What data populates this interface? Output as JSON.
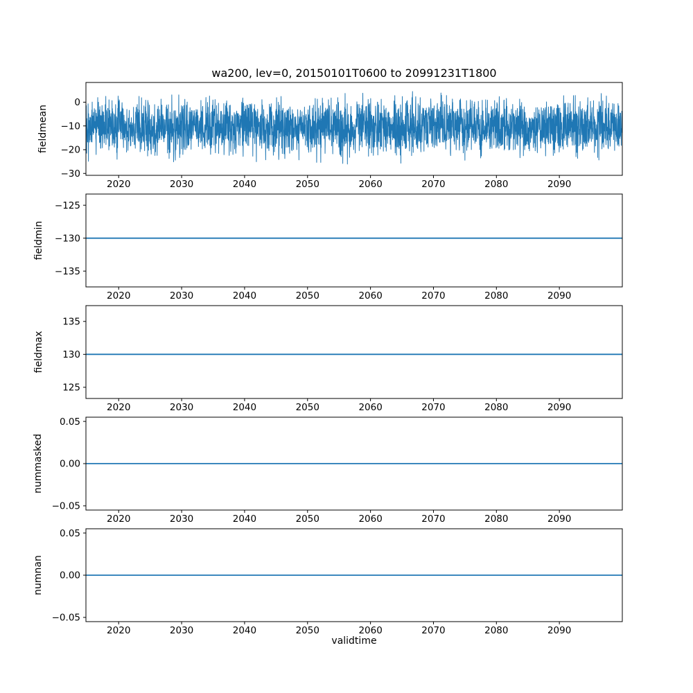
{
  "figure": {
    "title": "wa200, lev=0, 20150101T0600 to 20991231T1800",
    "xlabel": "validtime",
    "background": "#ffffff",
    "line_color": "#1f77b4",
    "axes_edge_color": "#000000",
    "xlim": [
      2014.8,
      2100.0
    ],
    "x_ticks": {
      "values": [
        2020,
        2030,
        2040,
        2050,
        2060,
        2070,
        2080,
        2090
      ],
      "labels": [
        "2020",
        "2030",
        "2040",
        "2050",
        "2060",
        "2070",
        "2080",
        "2090"
      ]
    }
  },
  "chart_data": [
    {
      "type": "line",
      "ylabel": "fieldmean",
      "ylim": [
        -30.8,
        8.3
      ],
      "yticks": {
        "values": [
          0,
          -10,
          -20,
          -30
        ],
        "labels": [
          "0",
          "−10",
          "−20",
          "−30"
        ]
      },
      "series": {
        "kind": "noisy-random",
        "mean": -10.5,
        "std": 5.5,
        "min": -29.5,
        "max": 6.5,
        "n_points": 3000,
        "seed": 20150101,
        "description": "dense 6-hourly noise from 2015 to 2100; values mostly between −25 and 0 with spikes down to ≈ −29 and up to ≈ +6"
      }
    },
    {
      "type": "line",
      "ylabel": "fieldmin",
      "ylim": [
        -137.4,
        -123.3
      ],
      "yticks": {
        "values": [
          -125,
          -130,
          -135
        ],
        "labels": [
          "−125",
          "−130",
          "−135"
        ]
      },
      "series": {
        "kind": "constant",
        "value": -130
      }
    },
    {
      "type": "line",
      "ylabel": "fieldmax",
      "ylim": [
        123.3,
        137.4
      ],
      "yticks": {
        "values": [
          135,
          130,
          125
        ],
        "labels": [
          "135",
          "130",
          "125"
        ]
      },
      "series": {
        "kind": "constant",
        "value": 130
      }
    },
    {
      "type": "line",
      "ylabel": "nummasked",
      "ylim": [
        -0.055,
        0.055
      ],
      "yticks": {
        "values": [
          0.05,
          0.0,
          -0.05
        ],
        "labels": [
          "0.05",
          "0.00",
          "−0.05"
        ]
      },
      "series": {
        "kind": "constant",
        "value": 0
      }
    },
    {
      "type": "line",
      "ylabel": "numnan",
      "ylim": [
        -0.055,
        0.055
      ],
      "yticks": {
        "values": [
          0.05,
          0.0,
          -0.05
        ],
        "labels": [
          "0.05",
          "0.00",
          "−0.05"
        ]
      },
      "series": {
        "kind": "constant",
        "value": 0
      }
    }
  ]
}
